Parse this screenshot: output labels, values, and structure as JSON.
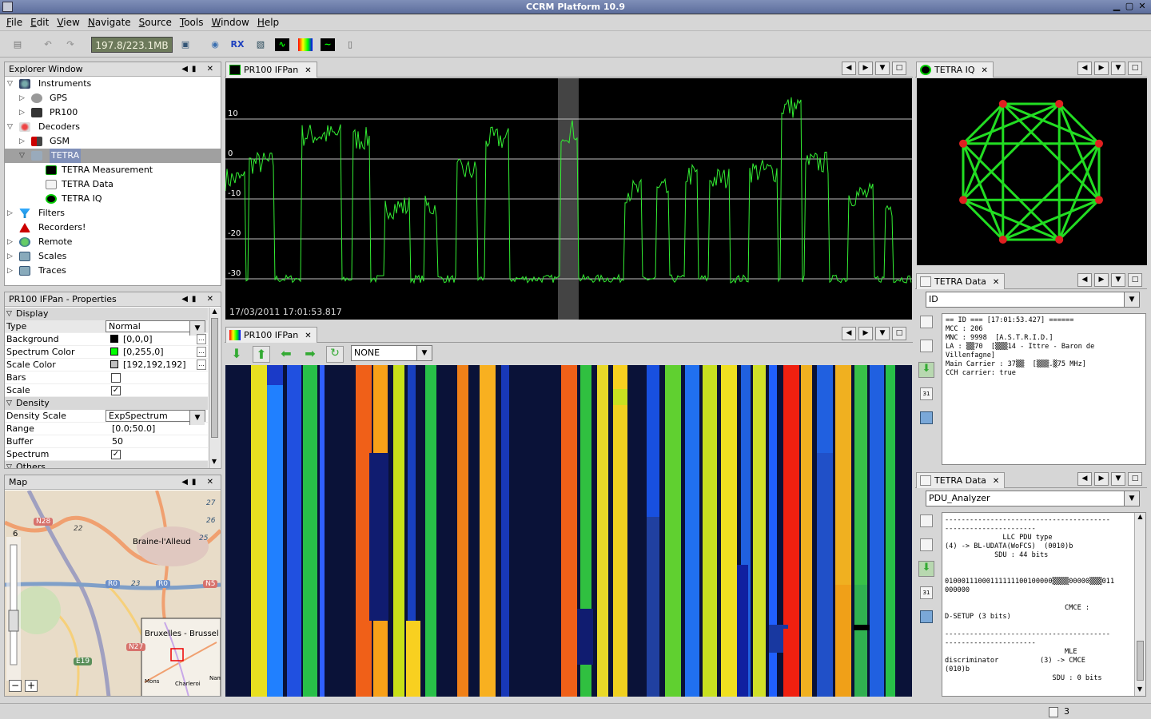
{
  "window": {
    "title": "CCRM Platform 10.9"
  },
  "menu": [
    "File",
    "Edit",
    "View",
    "Navigate",
    "Source",
    "Tools",
    "Window",
    "Help"
  ],
  "toolbar": {
    "memory": "197.8/223.1MB",
    "rx_label": "RX"
  },
  "explorer": {
    "title": "Explorer Window",
    "items": [
      {
        "label": "Instruments"
      },
      {
        "label": "GPS"
      },
      {
        "label": "PR100"
      },
      {
        "label": "Decoders"
      },
      {
        "label": "GSM"
      },
      {
        "label": "TETRA"
      },
      {
        "label": "TETRA Measurement"
      },
      {
        "label": "TETRA Data"
      },
      {
        "label": "TETRA IQ"
      },
      {
        "label": "Filters"
      },
      {
        "label": "Recorders!"
      },
      {
        "label": "Remote"
      },
      {
        "label": "Scales"
      },
      {
        "label": "Traces"
      }
    ]
  },
  "properties": {
    "title": "PR100 IFPan - Properties",
    "section_display": "Display",
    "section_density": "Density",
    "section_others": "Others",
    "rows": {
      "type": {
        "k": "Type",
        "v": "Normal"
      },
      "background": {
        "k": "Background",
        "v": "[0,0,0]",
        "color": "#000000"
      },
      "spectrum_color": {
        "k": "Spectrum Color",
        "v": "[0,255,0]",
        "color": "#00ff00"
      },
      "scale_color": {
        "k": "Scale Color",
        "v": "[192,192,192]",
        "color": "#c0c0c0"
      },
      "bars": {
        "k": "Bars",
        "checked": false
      },
      "scale": {
        "k": "Scale",
        "checked": true
      },
      "density_scale": {
        "k": "Density Scale",
        "v": "ExpSpectrum"
      },
      "range": {
        "k": "Range",
        "v": "[0.0;50.0]"
      },
      "buffer": {
        "k": "Buffer",
        "v": "50"
      },
      "spectrum": {
        "k": "Spectrum",
        "checked": true
      }
    }
  },
  "map": {
    "title": "Map",
    "zoom_level": "6",
    "places": {
      "braine": "Braine-l'Alleud",
      "bruxelles": "Bruxelles - Brussel",
      "mons": "Mons",
      "charleroi": "Charleroi",
      "nam": "Nam"
    },
    "roads": {
      "n28": "N28",
      "r0a": "R0",
      "r0b": "R0",
      "n5": "N5",
      "n27": "N27",
      "e19": "E19",
      "r22": "22",
      "r23": "23",
      "r25": "25",
      "r26": "26",
      "r27": "27"
    },
    "zoom_minus": "−",
    "zoom_plus": "+"
  },
  "ifpan": {
    "tab": "PR100 IFPan",
    "timestamp": "17/03/2011 17:01:53.817",
    "yticks": [
      "10",
      "0",
      "-10",
      "-20",
      "-30"
    ],
    "trace_color": "#33ee33"
  },
  "waterfall": {
    "tab": "PR100 IFPan",
    "select": "NONE"
  },
  "tetra_iq": {
    "tab": "TETRA IQ"
  },
  "tetra_data_1": {
    "tab": "TETRA Data",
    "select": "ID",
    "lines": [
      "== ID === [17:01:53.427] ======",
      "MCC : 206",
      "MNC : 9998  [A.S.T.R.I.D.]",
      "LA : ▒▒70  [▒▒▒14 - Ittre - Baron de",
      "Villenfagne]",
      "Main Carrier : 37▒▒  [▒▒▒.▒75 MHz]",
      "",
      "CCH carrier: true"
    ]
  },
  "tetra_data_2": {
    "tab": "TETRA Data",
    "select": "PDU_Analyzer",
    "lines": [
      "----------------------------------------",
      "----------------------",
      "              LLC PDU type",
      "(4) -> BL-UDATA(WoFCS)  (0010)b",
      "            SDU : 44 bits",
      "",
      "",
      "01000111000111111100100000▒▒▒▒00000▒▒▒011",
      "000000",
      "",
      "                             CMCE :",
      "D-SETUP (3 bits)",
      "",
      "----------------------------------------",
      "----------------------",
      "                             MLE",
      "discriminator          (3) -> CMCE",
      "(010)b",
      "                          SDU : 0 bits"
    ]
  },
  "status": {
    "count": "3"
  }
}
